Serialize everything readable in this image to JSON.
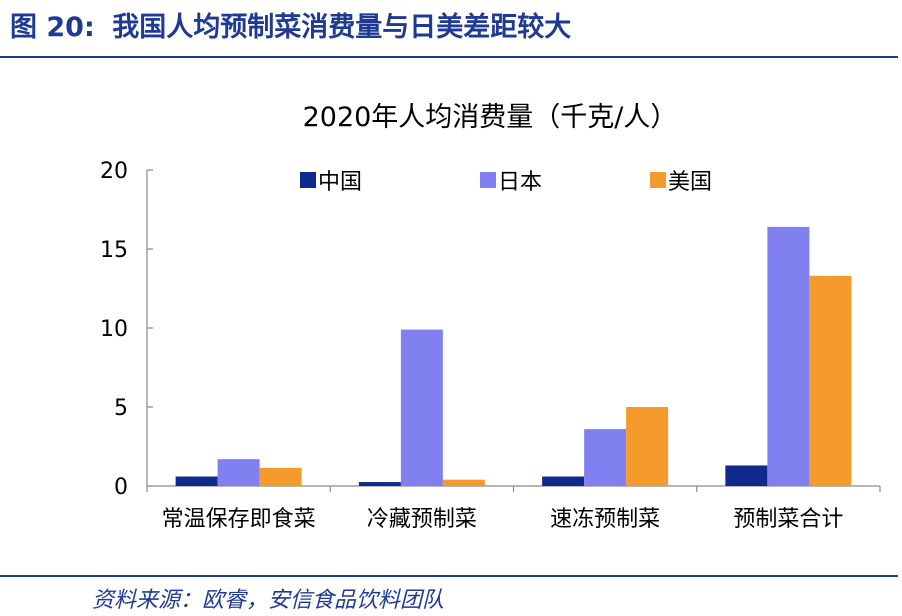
{
  "figure": {
    "label": "图 20",
    "separator": ":",
    "title": "我国人均预制菜消费量与日美差距较大"
  },
  "source": "资料来源：欧睿，安信食品饮料团队",
  "colors": {
    "accent": "#1F3A93",
    "china": "#0F2A8A",
    "japan": "#8080F0",
    "usa": "#F59A2C"
  },
  "chart_data": {
    "type": "bar",
    "title": "2020年人均消费量（千克/人）",
    "xlabel": "",
    "ylabel": "",
    "categories": [
      "常温保存即食菜",
      "冷藏预制菜",
      "速冻预制菜",
      "预制菜合计"
    ],
    "series": [
      {
        "name": "中国",
        "values": [
          0.6,
          0.25,
          0.6,
          1.3
        ]
      },
      {
        "name": "日本",
        "values": [
          1.7,
          9.9,
          3.6,
          16.4
        ]
      },
      {
        "name": "美国",
        "values": [
          1.15,
          0.4,
          5.0,
          13.3
        ]
      }
    ],
    "ylim": [
      0,
      20
    ],
    "yticks": [
      0,
      5,
      10,
      15,
      20
    ],
    "grid": false,
    "legend_position": "top"
  }
}
